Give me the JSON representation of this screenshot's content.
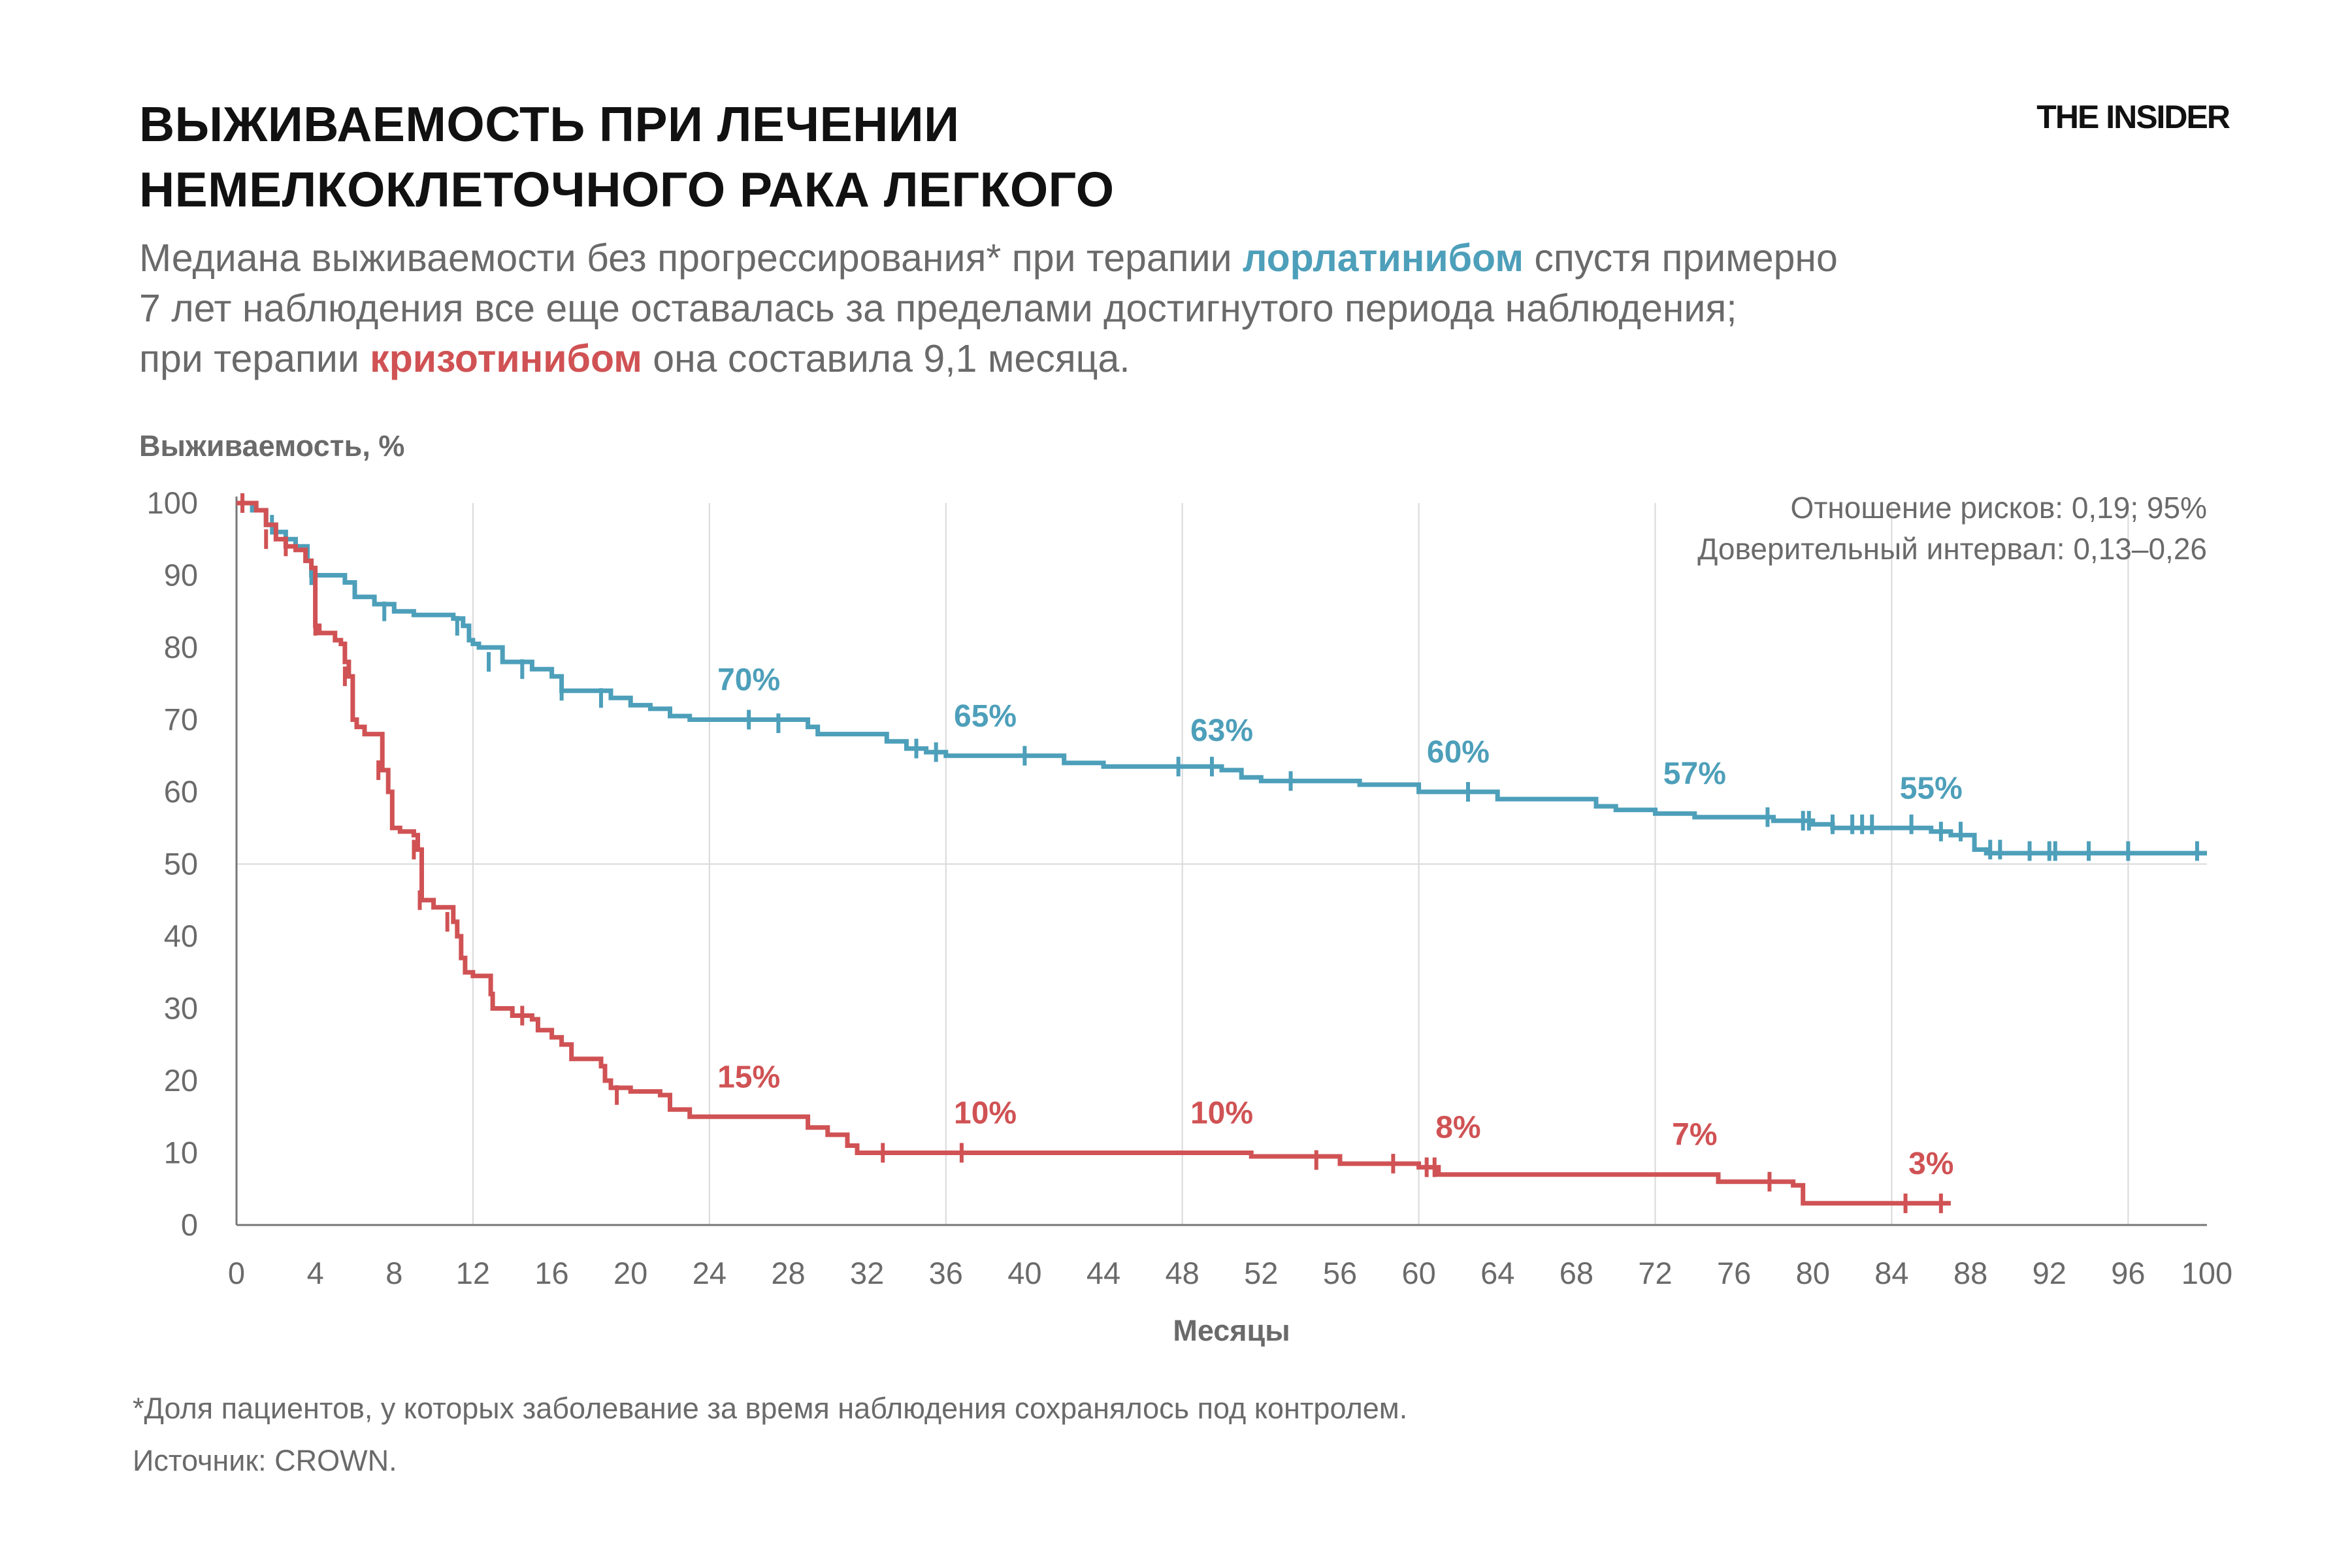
{
  "header": {
    "title_line1": "ВЫЖИВАЕМОСТЬ ПРИ ЛЕЧЕНИИ",
    "title_line2": "НЕМЕЛКОКЛЕТОЧНОГО РАКА ЛЕГКОГО",
    "logo": "THE INSIDER"
  },
  "subtitle": {
    "l1_a": "Медиана выживаемости без прогрессирования* при терапии ",
    "l1_b": "лорлатинибом",
    "l1_c": " спустя примерно",
    "l2": "7 лет наблюдения все еще оставалась за пределами достигнутого периода наблюдения;",
    "l3_a": "при терапии ",
    "l3_b": "кризотинибом",
    "l3_c": " она составила 9,1 месяца."
  },
  "footer": {
    "note": "*Доля пациентов, у которых заболевание за время наблюдения сохранялось под контролем.",
    "source": "Источник: CROWN."
  },
  "colors": {
    "lorlatinib": "#4d9fba",
    "crizotinib": "#d05254",
    "grid": "#d9d9d9",
    "axis": "#777777",
    "text": "#6a6a6a"
  },
  "chart_data": {
    "type": "line",
    "step": true,
    "ylabel": "Выживаемость, %",
    "xlabel": "Месяцы",
    "annotation": [
      "Отношение рисков: 0,19; 95%",
      "Доверительный интервал: 0,13–0,26"
    ],
    "xlim": [
      0,
      100
    ],
    "ylim": [
      0,
      100
    ],
    "xticks": [
      0,
      4,
      8,
      12,
      16,
      20,
      24,
      28,
      32,
      36,
      40,
      44,
      48,
      52,
      56,
      60,
      64,
      68,
      72,
      76,
      80,
      84,
      88,
      92,
      96,
      100
    ],
    "yticks": [
      0,
      10,
      20,
      30,
      40,
      50,
      60,
      70,
      80,
      90,
      100
    ],
    "vgrid_at": [
      12,
      24,
      36,
      48,
      60,
      72,
      84,
      96
    ],
    "hgrid_at": [
      50
    ],
    "series": [
      {
        "name": "лорлатиниб",
        "color_key": "lorlatinib",
        "points": [
          [
            0,
            100
          ],
          [
            0.8,
            99
          ],
          [
            1.5,
            97
          ],
          [
            2,
            96
          ],
          [
            2.5,
            95
          ],
          [
            3,
            94
          ],
          [
            3.6,
            92
          ],
          [
            3.8,
            90
          ],
          [
            5.5,
            89
          ],
          [
            6,
            87
          ],
          [
            7,
            86
          ],
          [
            8,
            85
          ],
          [
            9,
            84.5
          ],
          [
            11,
            84
          ],
          [
            11.5,
            83
          ],
          [
            11.8,
            81
          ],
          [
            12,
            80.5
          ],
          [
            12.3,
            80
          ],
          [
            13.5,
            78
          ],
          [
            15,
            77
          ],
          [
            16,
            76
          ],
          [
            16.5,
            74
          ],
          [
            18,
            74
          ],
          [
            19,
            73
          ],
          [
            20,
            72
          ],
          [
            21,
            71.5
          ],
          [
            22,
            70.5
          ],
          [
            23,
            70
          ],
          [
            26,
            70
          ],
          [
            27,
            70
          ],
          [
            29,
            69
          ],
          [
            29.5,
            68
          ],
          [
            33,
            67
          ],
          [
            34,
            66
          ],
          [
            35,
            65.5
          ],
          [
            36,
            65
          ],
          [
            40,
            65
          ],
          [
            42,
            64
          ],
          [
            44,
            63.5
          ],
          [
            48,
            63.5
          ],
          [
            50,
            63
          ],
          [
            51,
            62
          ],
          [
            52,
            61.5
          ],
          [
            57,
            61
          ],
          [
            60,
            60
          ],
          [
            63,
            60
          ],
          [
            64,
            59
          ],
          [
            69,
            58
          ],
          [
            70,
            57.5
          ],
          [
            72,
            57
          ],
          [
            74,
            56.5
          ],
          [
            78,
            56
          ],
          [
            80,
            55.5
          ],
          [
            81,
            55
          ],
          [
            83,
            55
          ],
          [
            85,
            55
          ],
          [
            86,
            54.5
          ],
          [
            87,
            54
          ],
          [
            88.2,
            52
          ],
          [
            88.8,
            51.5
          ],
          [
            100,
            51.5
          ]
        ],
        "censors": [
          [
            0.3,
            100
          ],
          [
            1.8,
            97
          ],
          [
            3.8,
            90
          ],
          [
            7.5,
            85
          ],
          [
            11.2,
            83
          ],
          [
            12.8,
            78
          ],
          [
            14.5,
            77
          ],
          [
            16.5,
            74
          ],
          [
            18.5,
            73
          ],
          [
            26,
            70
          ],
          [
            27.5,
            69.5
          ],
          [
            34.5,
            66
          ],
          [
            35.5,
            65.5
          ],
          [
            40,
            65
          ],
          [
            47.8,
            63.5
          ],
          [
            49.5,
            63.5
          ],
          [
            53.5,
            61.5
          ],
          [
            62.5,
            60
          ],
          [
            77.7,
            56.5
          ],
          [
            79.5,
            56
          ],
          [
            79.8,
            56
          ],
          [
            81,
            55.5
          ],
          [
            82,
            55.5
          ],
          [
            82.5,
            55.5
          ],
          [
            83,
            55.5
          ],
          [
            85,
            55.5
          ],
          [
            86.5,
            54.5
          ],
          [
            87.5,
            54.5
          ],
          [
            89,
            52
          ],
          [
            89.5,
            52
          ],
          [
            91,
            51.8
          ],
          [
            92,
            51.8
          ],
          [
            92.3,
            51.8
          ],
          [
            94,
            51.8
          ],
          [
            96,
            51.8
          ],
          [
            99.5,
            51.8
          ]
        ],
        "labels": [
          {
            "x": 26,
            "y": 70,
            "text": "70%"
          },
          {
            "x": 38,
            "y": 65,
            "text": "65%"
          },
          {
            "x": 50,
            "y": 63,
            "text": "63%"
          },
          {
            "x": 62,
            "y": 60,
            "text": "60%"
          },
          {
            "x": 74,
            "y": 57,
            "text": "57%"
          },
          {
            "x": 86,
            "y": 55,
            "text": "55%"
          }
        ]
      },
      {
        "name": "кризотиниб",
        "color_key": "crizotinib",
        "points": [
          [
            0,
            100
          ],
          [
            1,
            99
          ],
          [
            1.5,
            97
          ],
          [
            2,
            95
          ],
          [
            2.5,
            94
          ],
          [
            3,
            93.5
          ],
          [
            3.5,
            92
          ],
          [
            3.8,
            91
          ],
          [
            4,
            83
          ],
          [
            4.2,
            82
          ],
          [
            5,
            81
          ],
          [
            5.3,
            80.5
          ],
          [
            5.5,
            78
          ],
          [
            5.7,
            76
          ],
          [
            5.9,
            70
          ],
          [
            6.1,
            69
          ],
          [
            6.5,
            68
          ],
          [
            7.2,
            68
          ],
          [
            7.4,
            63
          ],
          [
            7.7,
            60
          ],
          [
            7.9,
            55
          ],
          [
            8.3,
            54.5
          ],
          [
            9,
            54
          ],
          [
            9.2,
            52
          ],
          [
            9.4,
            45
          ],
          [
            10,
            44
          ],
          [
            11,
            42
          ],
          [
            11.2,
            40
          ],
          [
            11.4,
            37
          ],
          [
            11.6,
            35
          ],
          [
            12,
            34.5
          ],
          [
            12.8,
            34.5
          ],
          [
            12.9,
            32
          ],
          [
            13,
            30
          ],
          [
            14,
            29
          ],
          [
            15,
            28.5
          ],
          [
            15.3,
            27
          ],
          [
            16,
            26
          ],
          [
            16.5,
            25
          ],
          [
            17,
            23
          ],
          [
            18.5,
            22
          ],
          [
            18.7,
            20
          ],
          [
            19,
            19
          ],
          [
            20,
            18.5
          ],
          [
            21.5,
            18
          ],
          [
            22,
            16
          ],
          [
            23,
            15
          ],
          [
            28.5,
            15
          ],
          [
            29,
            13.5
          ],
          [
            30,
            12.5
          ],
          [
            31,
            11
          ],
          [
            31.5,
            10
          ],
          [
            32,
            10
          ],
          [
            51,
            10
          ],
          [
            51.5,
            9.5
          ],
          [
            56,
            8.5
          ],
          [
            60,
            8
          ],
          [
            61,
            7
          ],
          [
            75,
            7
          ],
          [
            75.2,
            6
          ],
          [
            79,
            5.5
          ],
          [
            79.5,
            3
          ],
          [
            87,
            3
          ]
        ],
        "censors": [
          [
            0.3,
            100
          ],
          [
            1.5,
            95
          ],
          [
            2.5,
            94
          ],
          [
            4,
            83
          ],
          [
            5.5,
            76
          ],
          [
            7.2,
            63
          ],
          [
            9,
            52
          ],
          [
            9.3,
            45
          ],
          [
            10.7,
            42
          ],
          [
            14.5,
            29
          ],
          [
            19.3,
            18
          ],
          [
            32.8,
            10
          ],
          [
            36.8,
            10
          ],
          [
            54.8,
            9
          ],
          [
            58.7,
            8.5
          ],
          [
            60.4,
            8
          ],
          [
            60.8,
            8
          ],
          [
            77.8,
            6
          ],
          [
            84.7,
            3
          ],
          [
            86.5,
            3
          ]
        ],
        "labels": [
          {
            "x": 26,
            "y": 15,
            "text": "15%"
          },
          {
            "x": 38,
            "y": 10,
            "text": "10%"
          },
          {
            "x": 50,
            "y": 10,
            "text": "10%"
          },
          {
            "x": 62,
            "y": 8,
            "text": "8%"
          },
          {
            "x": 74,
            "y": 7,
            "text": "7%"
          },
          {
            "x": 86,
            "y": 3,
            "text": "3%"
          }
        ]
      }
    ]
  }
}
